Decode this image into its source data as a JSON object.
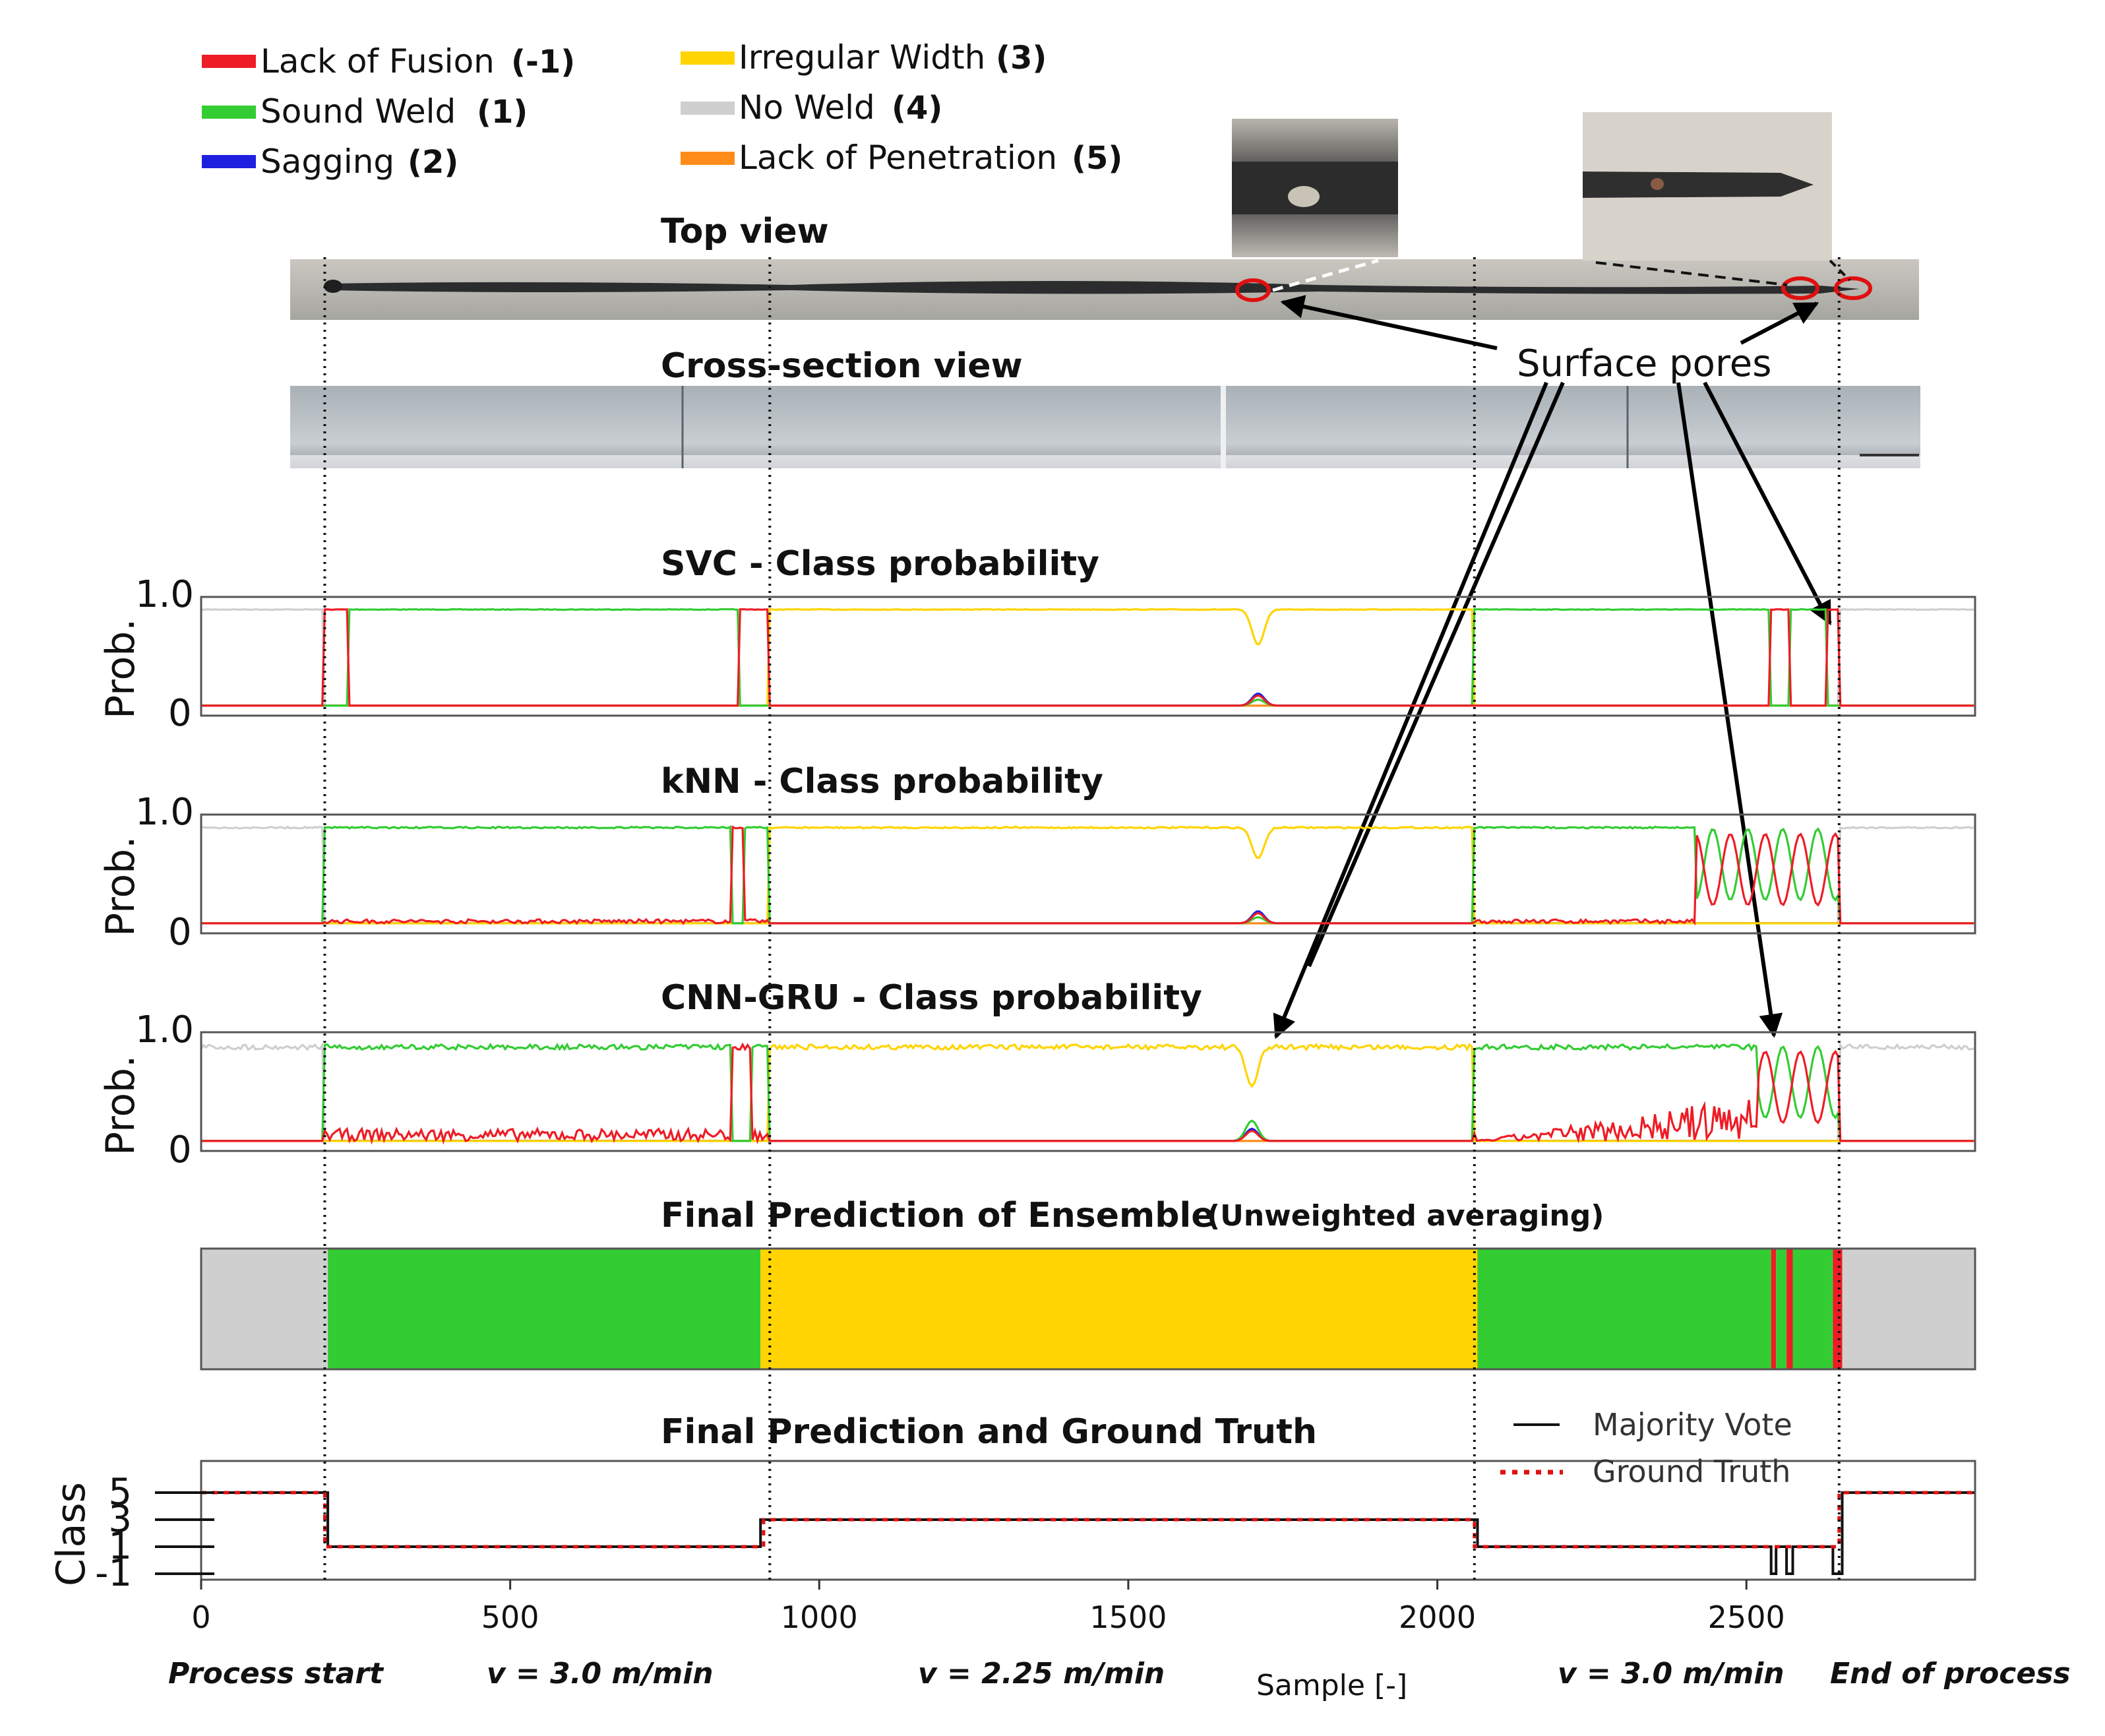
{
  "legend": {
    "items": [
      {
        "label": "Lack of Fusion",
        "code": "(-1)",
        "color": "#ee1c25"
      },
      {
        "label": "Sound Weld",
        "code": "(1)",
        "color": "#33cc33"
      },
      {
        "label": "Sagging",
        "code": "(2)",
        "color": "#1f1fe0"
      },
      {
        "label": "Irregular Width",
        "code": "(3)",
        "color": "#ffd400"
      },
      {
        "label": "No Weld",
        "code": "(4)",
        "color": "#cfcfcf"
      },
      {
        "label": "Lack of Penetration",
        "code": "(5)",
        "color": "#ff8c1a"
      }
    ]
  },
  "photos": {
    "top_view_title": "Top view",
    "cross_section_title": "Cross-section view",
    "callout": "Surface pores"
  },
  "panels": {
    "svc_title": "SVC - Class probability",
    "knn_title": "kNN - Class probability",
    "cnn_title": "CNN-GRU - Class probability",
    "ensemble_title": "Final Prediction of Ensemble",
    "ensemble_subtitle": "(Unweighted averaging)",
    "final_title": "Final Prediction and Ground Truth"
  },
  "axis": {
    "prob_ylabel": "Prob.",
    "class_ylabel": "Class",
    "xlabel": "Sample [-]",
    "prob_ticks": [
      "1.0",
      "0"
    ],
    "class_ticks": [
      "5",
      "3",
      "1",
      "-1"
    ],
    "x_ticks": [
      "0",
      "500",
      "1000",
      "1500",
      "2000",
      "2500"
    ]
  },
  "annotations": {
    "start": "Process start",
    "v1": "v = 3.0 m/min",
    "v2": "v = 2.25 m/min",
    "v3": "v = 3.0 m/min",
    "end": "End of process"
  },
  "final_legend": {
    "majority": "Majority Vote",
    "truth": "Ground Truth"
  },
  "chart_data": {
    "type": "line",
    "x_range": [
      0,
      2870
    ],
    "phase_boundaries": [
      200,
      920,
      2060,
      2650
    ],
    "colors": {
      "-1": "#ee1c25",
      "1": "#33cc33",
      "2": "#1f1fe0",
      "3": "#ffd400",
      "4": "#cfcfcf",
      "5": "#ff8c1a"
    },
    "probability_panels": [
      {
        "name": "SVC",
        "ylim": [
          0,
          1
        ],
        "dominant_segments": [
          [
            0,
            200,
            "4"
          ],
          [
            200,
            240,
            "-1"
          ],
          [
            240,
            870,
            "1"
          ],
          [
            870,
            920,
            "-1"
          ],
          [
            920,
            2060,
            "3"
          ],
          [
            2060,
            2540,
            "1"
          ],
          [
            2540,
            2570,
            "-1"
          ],
          [
            2570,
            2630,
            "1"
          ],
          [
            2630,
            2650,
            "-1"
          ],
          [
            2650,
            2870,
            "4"
          ]
        ],
        "dips": [
          {
            "x": 1710,
            "class": "3",
            "min": 0.62
          }
        ]
      },
      {
        "name": "kNN",
        "ylim": [
          0,
          1
        ],
        "dominant_segments": [
          [
            0,
            200,
            "4"
          ],
          [
            200,
            860,
            "1"
          ],
          [
            860,
            880,
            "-1"
          ],
          [
            880,
            920,
            "1"
          ],
          [
            920,
            2060,
            "3"
          ],
          [
            2060,
            2420,
            "1"
          ],
          [
            2420,
            2650,
            "mixed"
          ],
          [
            2650,
            2870,
            "4"
          ]
        ],
        "dips": [
          {
            "x": 1710,
            "class": "3",
            "min": 0.66
          }
        ]
      },
      {
        "name": "CNN-GRU",
        "ylim": [
          0,
          1
        ],
        "dominant_segments": [
          [
            0,
            200,
            "4"
          ],
          [
            200,
            860,
            "1"
          ],
          [
            860,
            890,
            "-1"
          ],
          [
            890,
            920,
            "1"
          ],
          [
            920,
            2060,
            "3"
          ],
          [
            2060,
            2520,
            "1"
          ],
          [
            2520,
            2650,
            "mixed"
          ],
          [
            2650,
            2870,
            "4"
          ]
        ],
        "dips": [
          {
            "x": 1700,
            "class": "3",
            "min": 0.56
          }
        ]
      }
    ],
    "ensemble_prediction": [
      {
        "start": 0,
        "end": 205,
        "class": "4"
      },
      {
        "start": 205,
        "end": 905,
        "class": "1"
      },
      {
        "start": 905,
        "end": 2065,
        "class": "3"
      },
      {
        "start": 2065,
        "end": 2540,
        "class": "1"
      },
      {
        "start": 2540,
        "end": 2548,
        "class": "-1"
      },
      {
        "start": 2548,
        "end": 2565,
        "class": "1"
      },
      {
        "start": 2565,
        "end": 2575,
        "class": "-1"
      },
      {
        "start": 2575,
        "end": 2640,
        "class": "1"
      },
      {
        "start": 2640,
        "end": 2655,
        "class": "-1"
      },
      {
        "start": 2655,
        "end": 2870,
        "class": "4"
      }
    ],
    "majority_vote": [
      [
        0,
        5
      ],
      [
        205,
        5
      ],
      [
        205,
        1
      ],
      [
        905,
        1
      ],
      [
        905,
        3
      ],
      [
        2065,
        3
      ],
      [
        2065,
        1
      ],
      [
        2540,
        1
      ],
      [
        2540,
        -1
      ],
      [
        2548,
        -1
      ],
      [
        2548,
        1
      ],
      [
        2565,
        1
      ],
      [
        2565,
        -1
      ],
      [
        2575,
        -1
      ],
      [
        2575,
        1
      ],
      [
        2640,
        1
      ],
      [
        2640,
        -1
      ],
      [
        2655,
        -1
      ],
      [
        2655,
        5
      ],
      [
        2870,
        5
      ]
    ],
    "ground_truth": [
      [
        0,
        5
      ],
      [
        200,
        5
      ],
      [
        200,
        1
      ],
      [
        910,
        1
      ],
      [
        910,
        3
      ],
      [
        2060,
        3
      ],
      [
        2060,
        1
      ],
      [
        2650,
        1
      ],
      [
        2650,
        5
      ],
      [
        2870,
        5
      ]
    ]
  }
}
